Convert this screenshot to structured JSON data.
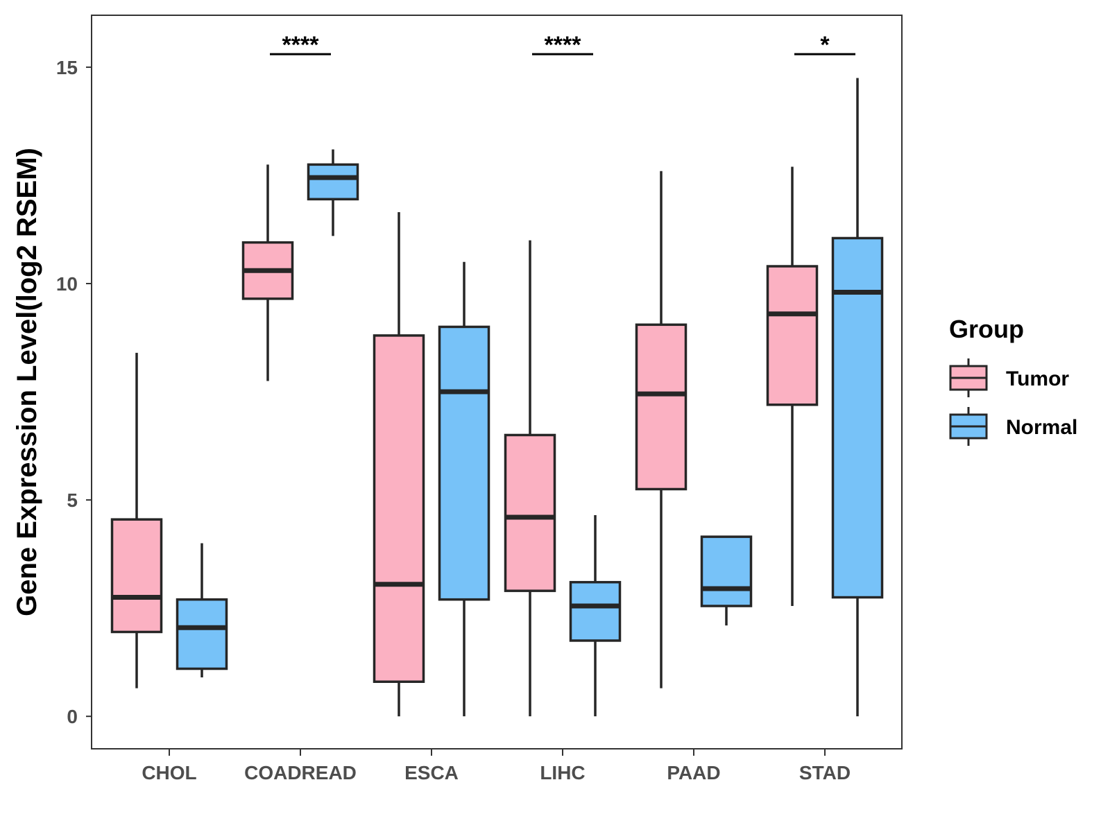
{
  "chart_data": {
    "type": "boxplot",
    "title": "",
    "xlabel": "",
    "ylabel": "Gene Expression Level(log2 RSEM)",
    "ylim": [
      -0.75,
      16.2
    ],
    "yticks": [
      0,
      5,
      10,
      15
    ],
    "categories": [
      "CHOL",
      "COADREAD",
      "ESCA",
      "LIHC",
      "PAAD",
      "STAD"
    ],
    "legend": {
      "title": "Group",
      "position": "right"
    },
    "series": [
      {
        "name": "Tumor",
        "color": "#FBB1C2",
        "boxes": [
          {
            "category": "CHOL",
            "min": 0.65,
            "q1": 1.95,
            "median": 2.75,
            "q3": 4.55,
            "max": 8.4
          },
          {
            "category": "COADREAD",
            "min": 7.75,
            "q1": 9.65,
            "median": 10.3,
            "q3": 10.95,
            "max": 12.75
          },
          {
            "category": "ESCA",
            "min": 0.0,
            "q1": 0.8,
            "median": 3.05,
            "q3": 8.8,
            "max": 11.65
          },
          {
            "category": "LIHC",
            "min": 0.0,
            "q1": 2.9,
            "median": 4.6,
            "q3": 6.5,
            "max": 11.0
          },
          {
            "category": "PAAD",
            "min": 0.65,
            "q1": 5.25,
            "median": 7.45,
            "q3": 9.05,
            "max": 12.6
          },
          {
            "category": "STAD",
            "min": 2.55,
            "q1": 7.2,
            "median": 9.3,
            "q3": 10.4,
            "max": 12.7
          }
        ]
      },
      {
        "name": "Normal",
        "color": "#77C2F8",
        "boxes": [
          {
            "category": "CHOL",
            "min": 0.9,
            "q1": 1.1,
            "median": 2.05,
            "q3": 2.7,
            "max": 4.0
          },
          {
            "category": "COADREAD",
            "min": 11.1,
            "q1": 11.95,
            "median": 12.45,
            "q3": 12.75,
            "max": 13.1
          },
          {
            "category": "ESCA",
            "min": 0.0,
            "q1": 2.7,
            "median": 7.5,
            "q3": 9.0,
            "max": 10.5
          },
          {
            "category": "LIHC",
            "min": 0.0,
            "q1": 1.75,
            "median": 2.55,
            "q3": 3.1,
            "max": 4.65
          },
          {
            "category": "PAAD",
            "min": 2.1,
            "q1": 2.55,
            "median": 2.95,
            "q3": 4.15,
            "max": 4.15
          },
          {
            "category": "STAD",
            "min": 0.0,
            "q1": 2.75,
            "median": 9.8,
            "q3": 11.05,
            "max": 14.75
          }
        ]
      }
    ],
    "significance": [
      {
        "category": "COADREAD",
        "label": "****",
        "y": 15.3
      },
      {
        "category": "LIHC",
        "label": "****",
        "y": 15.3
      },
      {
        "category": "STAD",
        "label": "*",
        "y": 15.3
      }
    ]
  }
}
